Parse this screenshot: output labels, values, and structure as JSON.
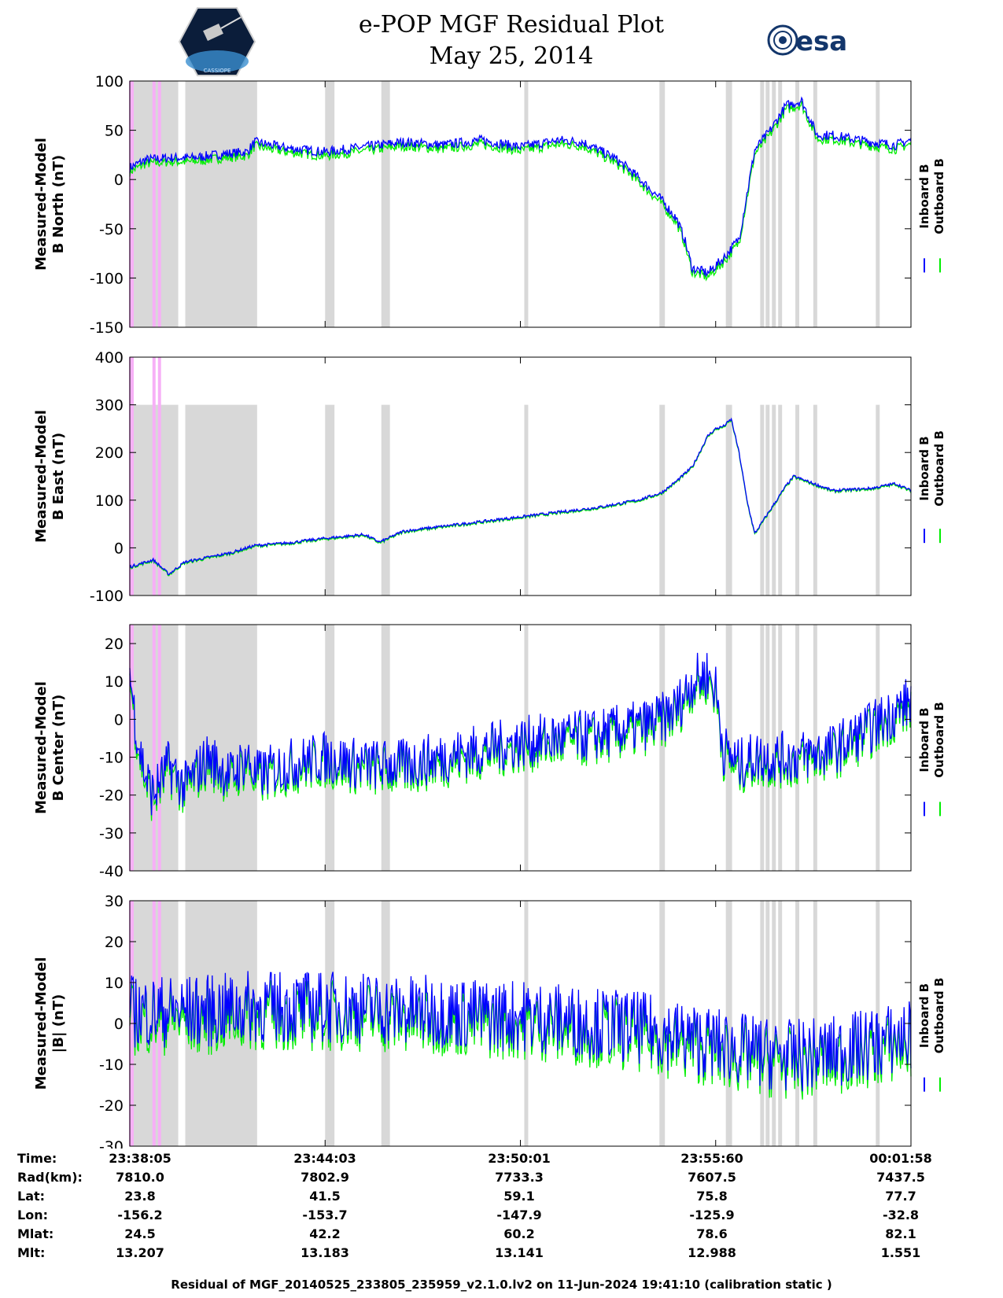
{
  "header": {
    "title_line1": "e-POP MGF Residual Plot",
    "title_line2": "May 25, 2014",
    "logo_left_label": "CASSIOPE",
    "logo_right_label": "esa"
  },
  "colors": {
    "inboard": "#0000ff",
    "outboard": "#00ee00",
    "gap_shading": "#d8d8d8",
    "flag_marker": "#f7b0f7"
  },
  "chart_data": [
    {
      "type": "line",
      "id": "north",
      "ylabel_line1": "Measured-Model",
      "ylabel_line2": "B North (nT)",
      "ylim": [
        -150,
        100
      ],
      "yticks": [
        100,
        50,
        0,
        -50,
        -100,
        -150
      ],
      "legend": [
        "Inboard B",
        "Outboard B"
      ],
      "legend_position": "right",
      "noise": 5,
      "outboard_offset": -4,
      "series": [
        {
          "name": "Inboard B trend",
          "t": [
            0,
            0.02,
            0.05,
            0.08,
            0.1,
            0.12,
            0.15,
            0.16,
            0.2,
            0.25,
            0.3,
            0.35,
            0.4,
            0.45,
            0.5,
            0.55,
            0.58,
            0.6,
            0.62,
            0.64,
            0.66,
            0.68,
            0.7,
            0.71,
            0.72,
            0.74,
            0.76,
            0.78,
            0.8,
            0.82,
            0.84,
            0.86,
            0.88,
            0.9,
            0.92,
            0.95,
            0.98,
            1.0
          ],
          "values": [
            12,
            20,
            22,
            22,
            24,
            26,
            28,
            38,
            32,
            28,
            33,
            38,
            35,
            40,
            33,
            40,
            38,
            30,
            22,
            10,
            -5,
            -20,
            -40,
            -60,
            -90,
            -95,
            -80,
            -60,
            30,
            50,
            75,
            80,
            45,
            45,
            42,
            38,
            35,
            40
          ]
        }
      ]
    },
    {
      "type": "line",
      "id": "east",
      "ylabel_line1": "Measured-Model",
      "ylabel_line2": "B East (nT)",
      "ylim": [
        -100,
        400
      ],
      "yticks": [
        400,
        300,
        200,
        100,
        0,
        -100
      ],
      "legend": [
        "Inboard B",
        "Outboard B"
      ],
      "legend_position": "right",
      "noise": 3,
      "outboard_offset": -2,
      "series": [
        {
          "name": "Inboard B trend",
          "t": [
            0,
            0.01,
            0.03,
            0.05,
            0.07,
            0.1,
            0.13,
            0.16,
            0.2,
            0.25,
            0.3,
            0.32,
            0.35,
            0.4,
            0.45,
            0.5,
            0.55,
            0.6,
            0.65,
            0.68,
            0.7,
            0.72,
            0.74,
            0.75,
            0.76,
            0.77,
            0.78,
            0.79,
            0.8,
            0.82,
            0.84,
            0.85,
            0.9,
            0.95,
            0.98,
            1.0
          ],
          "values": [
            -40,
            -35,
            -25,
            -55,
            -30,
            -20,
            -10,
            5,
            10,
            20,
            28,
            12,
            35,
            45,
            55,
            65,
            75,
            85,
            100,
            115,
            140,
            170,
            235,
            250,
            255,
            270,
            200,
            100,
            30,
            80,
            130,
            150,
            120,
            125,
            135,
            120
          ]
        }
      ]
    },
    {
      "type": "line",
      "id": "center",
      "ylabel_line1": "Measured-Model",
      "ylabel_line2": "B Center (nT)",
      "ylim": [
        -40,
        25
      ],
      "yticks": [
        20,
        10,
        0,
        -10,
        -20,
        -30,
        -40
      ],
      "legend": [
        "Inboard B",
        "Outboard B"
      ],
      "legend_position": "right",
      "noise": 7,
      "outboard_offset": -1.5,
      "series": [
        {
          "name": "Inboard B trend",
          "t": [
            0,
            0.01,
            0.02,
            0.03,
            0.05,
            0.07,
            0.1,
            0.13,
            0.15,
            0.16,
            0.2,
            0.25,
            0.3,
            0.35,
            0.4,
            0.45,
            0.5,
            0.55,
            0.6,
            0.65,
            0.68,
            0.7,
            0.72,
            0.74,
            0.75,
            0.76,
            0.78,
            0.8,
            0.85,
            0.9,
            0.95,
            1.0
          ],
          "values": [
            12,
            -5,
            -15,
            -20,
            -12,
            -18,
            -10,
            -15,
            -10,
            -15,
            -12,
            -10,
            -12,
            -12,
            -10,
            -8,
            -6,
            -5,
            -4,
            -2,
            0,
            3,
            10,
            12,
            8,
            -8,
            -12,
            -10,
            -10,
            -8,
            -2,
            5
          ]
        }
      ]
    },
    {
      "type": "line",
      "id": "magnitude",
      "ylabel_line1": "Measured-Model",
      "ylabel_line2": "|B| (nT)",
      "ylim": [
        -30,
        30
      ],
      "yticks": [
        30,
        20,
        10,
        0,
        -10,
        -20,
        -30
      ],
      "legend": [
        "Inboard B",
        "Outboard B"
      ],
      "legend_position": "right",
      "noise": 9,
      "outboard_offset": -2,
      "series": [
        {
          "name": "Inboard B trend",
          "t": [
            0,
            0.05,
            0.1,
            0.15,
            0.2,
            0.25,
            0.3,
            0.35,
            0.4,
            0.45,
            0.5,
            0.55,
            0.6,
            0.65,
            0.7,
            0.75,
            0.8,
            0.85,
            0.9,
            0.95,
            1.0
          ],
          "values": [
            3,
            3,
            3,
            4,
            4,
            4,
            4,
            3,
            3,
            2,
            2,
            1,
            0,
            -1,
            -3,
            -5,
            -7,
            -8,
            -7,
            -5,
            -3
          ]
        }
      ]
    }
  ],
  "gap_intervals": [
    [
      0.0,
      0.062
    ],
    [
      0.071,
      0.163
    ],
    [
      0.25,
      0.262
    ],
    [
      0.322,
      0.333
    ],
    [
      0.505,
      0.51
    ],
    [
      0.678,
      0.685
    ],
    [
      0.763,
      0.771
    ],
    [
      0.807,
      0.812
    ],
    [
      0.814,
      0.819
    ],
    [
      0.822,
      0.827
    ],
    [
      0.83,
      0.835
    ],
    [
      0.852,
      0.857
    ],
    [
      0.875,
      0.88
    ],
    [
      0.955,
      0.96
    ]
  ],
  "flag_markers": [
    0.001,
    0.003,
    0.031,
    0.038
  ],
  "time_axis": {
    "label": "Time:",
    "ticks": [
      "23:38:05",
      "23:44:03",
      "23:50:01",
      "23:55:60",
      "00:01:58"
    ]
  },
  "ephemeris": [
    {
      "label": "Rad(km):",
      "values": [
        "7810.0",
        "7802.9",
        "7733.3",
        "7607.5",
        "7437.5"
      ]
    },
    {
      "label": "Lat:",
      "values": [
        "23.8",
        "41.5",
        "59.1",
        "75.8",
        "77.7"
      ]
    },
    {
      "label": "Lon:",
      "values": [
        "-156.2",
        "-153.7",
        "-147.9",
        "-125.9",
        "-32.8"
      ]
    },
    {
      "label": "Mlat:",
      "values": [
        "24.5",
        "42.2",
        "60.2",
        "78.6",
        "82.1"
      ]
    },
    {
      "label": "Mlt:",
      "values": [
        "13.207",
        "13.183",
        "13.141",
        "12.988",
        "1.551"
      ]
    }
  ],
  "footer": "Residual of MGF_20140525_233805_235959_v2.1.0.lv2 on 11-Jun-2024 19:41:10 (calibration static )"
}
